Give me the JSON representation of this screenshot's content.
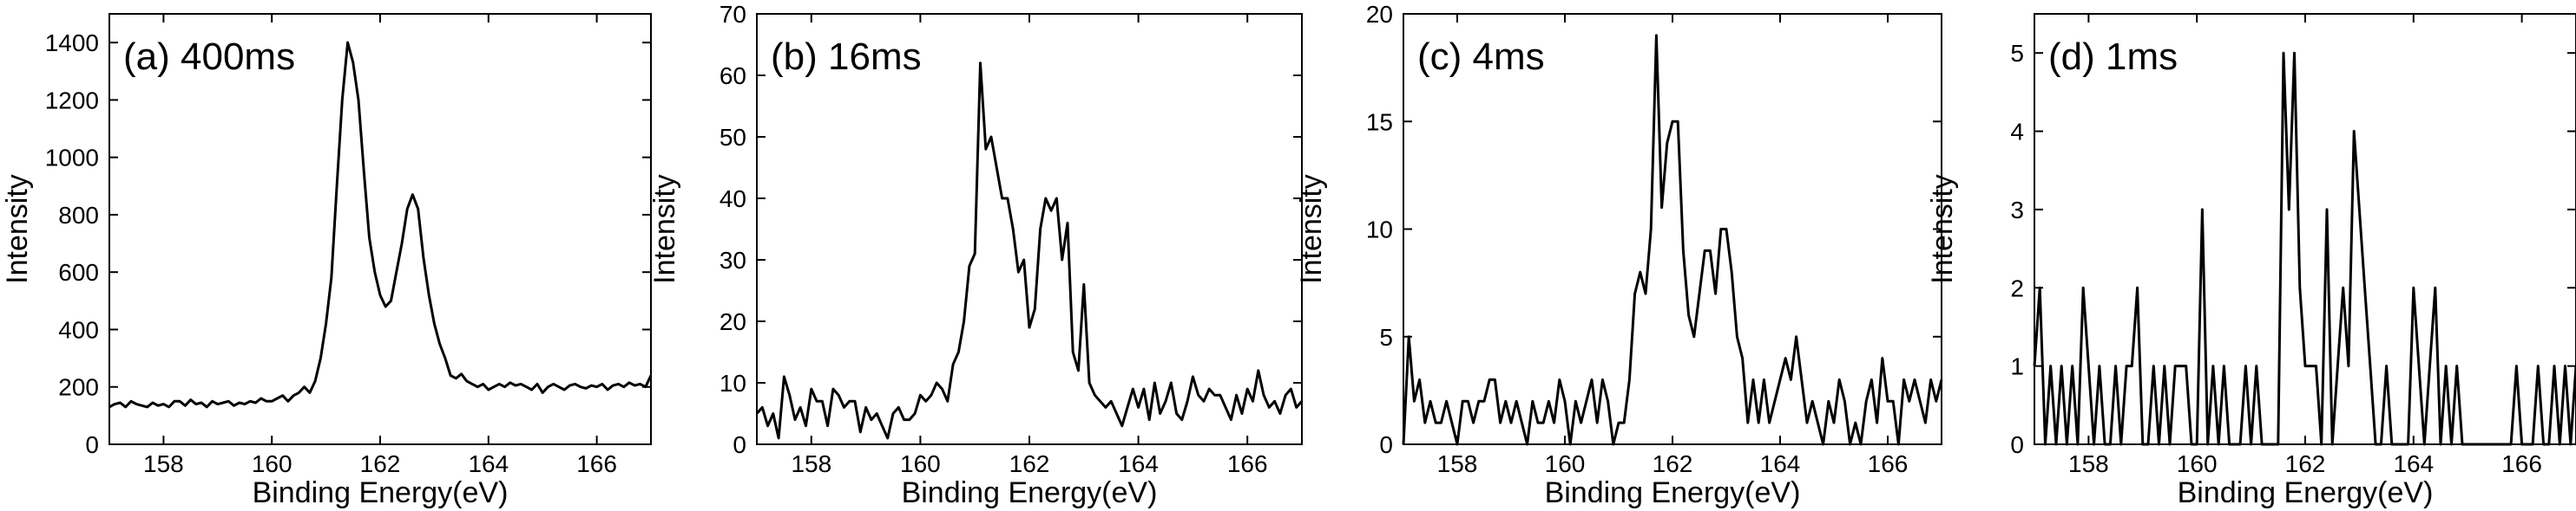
{
  "chart_data": [
    {
      "type": "line",
      "title": "(a) 400ms",
      "xlabel": "Binding Energy(eV)",
      "ylabel": "Intensity",
      "xlim": [
        157,
        167
      ],
      "ylim": [
        0,
        1500
      ],
      "xticks": [
        158,
        160,
        162,
        164,
        166
      ],
      "yticks": [
        0,
        200,
        400,
        600,
        800,
        1000,
        1200,
        1400
      ],
      "x": [
        157.0,
        157.1,
        157.2,
        157.3,
        157.4,
        157.5,
        157.6,
        157.7,
        157.8,
        157.9,
        158.0,
        158.1,
        158.2,
        158.3,
        158.4,
        158.5,
        158.6,
        158.7,
        158.8,
        158.9,
        159.0,
        159.1,
        159.2,
        159.3,
        159.4,
        159.5,
        159.6,
        159.7,
        159.8,
        159.9,
        160.0,
        160.1,
        160.2,
        160.3,
        160.4,
        160.5,
        160.6,
        160.7,
        160.8,
        160.9,
        161.0,
        161.1,
        161.2,
        161.3,
        161.4,
        161.5,
        161.6,
        161.7,
        161.8,
        161.9,
        162.0,
        162.1,
        162.2,
        162.3,
        162.4,
        162.5,
        162.6,
        162.7,
        162.8,
        162.9,
        163.0,
        163.1,
        163.2,
        163.3,
        163.4,
        163.5,
        163.6,
        163.7,
        163.8,
        163.9,
        164.0,
        164.1,
        164.2,
        164.3,
        164.4,
        164.5,
        164.6,
        164.7,
        164.8,
        164.9,
        165.0,
        165.1,
        165.2,
        165.3,
        165.4,
        165.5,
        165.6,
        165.7,
        165.8,
        165.9,
        166.0,
        166.1,
        166.2,
        166.3,
        166.4,
        166.5,
        166.6,
        166.7,
        166.8,
        166.9,
        167.0
      ],
      "values": [
        130,
        140,
        145,
        130,
        150,
        140,
        135,
        130,
        145,
        135,
        140,
        130,
        150,
        150,
        135,
        155,
        140,
        145,
        130,
        150,
        140,
        145,
        150,
        135,
        145,
        140,
        150,
        145,
        160,
        150,
        150,
        160,
        170,
        150,
        170,
        180,
        200,
        180,
        220,
        300,
        420,
        580,
        900,
        1200,
        1400,
        1330,
        1200,
        950,
        720,
        600,
        520,
        480,
        500,
        600,
        700,
        820,
        870,
        820,
        650,
        520,
        420,
        350,
        300,
        240,
        230,
        245,
        220,
        210,
        200,
        210,
        190,
        200,
        210,
        200,
        215,
        205,
        210,
        200,
        190,
        210,
        180,
        200,
        210,
        200,
        190,
        205,
        210,
        200,
        195,
        205,
        200,
        210,
        190,
        205,
        210,
        200,
        215,
        205,
        210,
        200,
        240
      ]
    },
    {
      "type": "line",
      "title": "(b) 16ms",
      "xlabel": "Binding Energy(eV)",
      "ylabel": "Intensity",
      "xlim": [
        157,
        167
      ],
      "ylim": [
        0,
        70
      ],
      "xticks": [
        158,
        160,
        162,
        164,
        166
      ],
      "yticks": [
        0,
        10,
        20,
        30,
        40,
        50,
        60,
        70
      ],
      "x": [
        157.0,
        157.1,
        157.2,
        157.3,
        157.4,
        157.5,
        157.6,
        157.7,
        157.8,
        157.9,
        158.0,
        158.1,
        158.2,
        158.3,
        158.4,
        158.5,
        158.6,
        158.7,
        158.8,
        158.9,
        159.0,
        159.1,
        159.2,
        159.3,
        159.4,
        159.5,
        159.6,
        159.7,
        159.8,
        159.9,
        160.0,
        160.1,
        160.2,
        160.3,
        160.4,
        160.5,
        160.6,
        160.7,
        160.8,
        160.9,
        161.0,
        161.1,
        161.2,
        161.3,
        161.4,
        161.5,
        161.6,
        161.7,
        161.8,
        161.9,
        162.0,
        162.1,
        162.2,
        162.3,
        162.4,
        162.5,
        162.6,
        162.7,
        162.8,
        162.9,
        163.0,
        163.1,
        163.2,
        163.3,
        163.4,
        163.5,
        163.6,
        163.7,
        163.8,
        163.9,
        164.0,
        164.1,
        164.2,
        164.3,
        164.4,
        164.5,
        164.6,
        164.7,
        164.8,
        164.9,
        165.0,
        165.1,
        165.2,
        165.3,
        165.4,
        165.5,
        165.6,
        165.7,
        165.8,
        165.9,
        166.0,
        166.1,
        166.2,
        166.3,
        166.4,
        166.5,
        166.6,
        166.7,
        166.8,
        166.9,
        167.0
      ],
      "values": [
        5,
        6,
        3,
        5,
        1,
        11,
        8,
        4,
        6,
        3,
        9,
        7,
        7,
        3,
        9,
        8,
        6,
        7,
        7,
        2,
        6,
        4,
        5,
        3,
        1,
        5,
        6,
        4,
        4,
        5,
        8,
        7,
        8,
        10,
        9,
        7,
        13,
        15,
        20,
        29,
        31,
        62,
        48,
        50,
        45,
        40,
        40,
        35,
        28,
        30,
        19,
        22,
        35,
        40,
        38,
        40,
        30,
        36,
        15,
        12,
        26,
        10,
        8,
        7,
        6,
        7,
        5,
        3,
        6,
        9,
        6,
        9,
        4,
        10,
        5,
        7,
        10,
        5,
        4,
        7,
        11,
        8,
        7,
        9,
        8,
        8,
        6,
        4,
        8,
        5,
        9,
        7,
        12,
        8,
        6,
        7,
        5,
        8,
        9,
        6,
        7
      ]
    },
    {
      "type": "line",
      "title": "(c) 4ms",
      "xlabel": "Binding Energy(eV)",
      "ylabel": "Intensity",
      "xlim": [
        157,
        167
      ],
      "ylim": [
        0,
        20
      ],
      "xticks": [
        158,
        160,
        162,
        164,
        166
      ],
      "yticks": [
        0,
        5,
        10,
        15,
        20
      ],
      "x": [
        157.0,
        157.1,
        157.2,
        157.3,
        157.4,
        157.5,
        157.6,
        157.7,
        157.8,
        157.9,
        158.0,
        158.1,
        158.2,
        158.3,
        158.4,
        158.5,
        158.6,
        158.7,
        158.8,
        158.9,
        159.0,
        159.1,
        159.2,
        159.3,
        159.4,
        159.5,
        159.6,
        159.7,
        159.8,
        159.9,
        160.0,
        160.1,
        160.2,
        160.3,
        160.4,
        160.5,
        160.6,
        160.7,
        160.8,
        160.9,
        161.0,
        161.1,
        161.2,
        161.3,
        161.4,
        161.5,
        161.6,
        161.7,
        161.8,
        161.9,
        162.0,
        162.1,
        162.2,
        162.3,
        162.4,
        162.5,
        162.6,
        162.7,
        162.8,
        162.9,
        163.0,
        163.1,
        163.2,
        163.3,
        163.4,
        163.5,
        163.6,
        163.7,
        163.8,
        163.9,
        164.0,
        164.1,
        164.2,
        164.3,
        164.4,
        164.5,
        164.6,
        164.7,
        164.8,
        164.9,
        165.0,
        165.1,
        165.2,
        165.3,
        165.4,
        165.5,
        165.6,
        165.7,
        165.8,
        165.9,
        166.0,
        166.1,
        166.2,
        166.3,
        166.4,
        166.5,
        166.6,
        166.7,
        166.8,
        166.9,
        167.0
      ],
      "values": [
        0,
        5,
        2,
        3,
        1,
        2,
        1,
        1,
        2,
        1,
        0,
        2,
        2,
        1,
        2,
        2,
        3,
        3,
        1,
        2,
        1,
        2,
        1,
        0,
        2,
        1,
        1,
        2,
        1,
        3,
        2,
        0,
        2,
        1,
        2,
        3,
        1,
        3,
        2,
        0,
        1,
        1,
        3,
        7,
        8,
        7,
        10,
        19,
        11,
        14,
        15,
        15,
        9,
        6,
        5,
        7,
        9,
        9,
        7,
        10,
        10,
        8,
        5,
        4,
        1,
        3,
        1,
        3,
        1,
        2,
        3,
        4,
        3,
        5,
        3,
        1,
        2,
        1,
        0,
        2,
        1,
        3,
        2,
        0,
        1,
        0,
        2,
        3,
        1,
        4,
        2,
        2,
        0,
        3,
        2,
        3,
        2,
        1,
        3,
        2,
        3
      ]
    },
    {
      "type": "line",
      "title": "(d) 1ms",
      "xlabel": "Binding Energy(eV)",
      "ylabel": "Intensity",
      "xlim": [
        157,
        167
      ],
      "ylim": [
        0,
        5.5
      ],
      "xticks": [
        158,
        160,
        162,
        164,
        166
      ],
      "yticks": [
        0,
        1,
        2,
        3,
        4,
        5
      ],
      "x": [
        157.0,
        157.1,
        157.2,
        157.3,
        157.4,
        157.5,
        157.6,
        157.7,
        157.8,
        157.9,
        158.0,
        158.1,
        158.2,
        158.3,
        158.4,
        158.5,
        158.6,
        158.7,
        158.8,
        158.9,
        159.0,
        159.1,
        159.2,
        159.3,
        159.4,
        159.5,
        159.6,
        159.7,
        159.8,
        159.9,
        160.0,
        160.1,
        160.2,
        160.3,
        160.4,
        160.5,
        160.6,
        160.7,
        160.8,
        160.9,
        161.0,
        161.1,
        161.2,
        161.3,
        161.4,
        161.5,
        161.6,
        161.7,
        161.8,
        161.9,
        162.0,
        162.1,
        162.2,
        162.3,
        162.4,
        162.5,
        162.6,
        162.7,
        162.8,
        162.9,
        163.0,
        163.1,
        163.2,
        163.3,
        163.4,
        163.5,
        163.6,
        163.7,
        163.8,
        163.9,
        164.0,
        164.1,
        164.2,
        164.3,
        164.4,
        164.5,
        164.6,
        164.7,
        164.8,
        164.9,
        165.0,
        165.1,
        165.2,
        165.3,
        165.4,
        165.5,
        165.6,
        165.7,
        165.8,
        165.9,
        166.0,
        166.1,
        166.2,
        166.3,
        166.4,
        166.5,
        166.6,
        166.7,
        166.8,
        166.9,
        167.0
      ],
      "values": [
        1,
        2,
        0,
        1,
        0,
        1,
        0,
        1,
        0,
        2,
        1,
        0,
        1,
        0,
        0,
        1,
        0,
        1,
        1,
        2,
        0,
        0,
        1,
        0,
        1,
        0,
        1,
        1,
        1,
        0,
        0,
        3,
        0,
        1,
        0,
        1,
        0,
        0,
        0,
        1,
        0,
        1,
        0,
        0,
        0,
        0,
        5,
        3,
        5,
        2,
        1,
        1,
        1,
        0,
        3,
        0,
        1,
        2,
        1,
        4,
        3,
        2,
        1,
        0,
        0,
        1,
        0,
        0,
        0,
        0,
        2,
        1,
        0,
        1,
        2,
        0,
        1,
        0,
        1,
        0,
        0,
        0,
        0,
        0,
        0,
        0,
        0,
        0,
        0,
        1,
        0,
        0,
        0,
        1,
        0,
        0,
        1,
        0,
        1,
        0,
        1
      ]
    }
  ]
}
